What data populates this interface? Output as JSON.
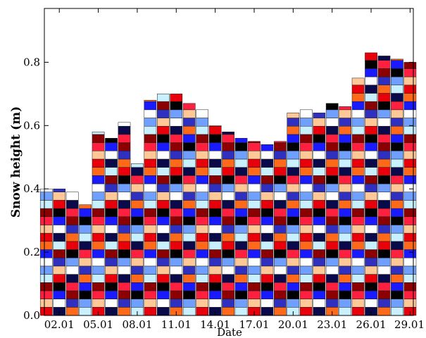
{
  "chart_data": {
    "type": "bar",
    "subtype": "stacked-layers",
    "xlabel": "Date",
    "ylabel": "Snow height (m)",
    "ylim": [
      0.0,
      0.97
    ],
    "y_ticks": [
      "0.0",
      "0.2",
      "0.4",
      "0.6",
      "0.8"
    ],
    "y_tick_values": [
      0.0,
      0.2,
      0.4,
      0.6,
      0.8
    ],
    "x_ticks": [
      "02.01",
      "05.01",
      "08.01",
      "11.01",
      "14.01",
      "17.01",
      "20.01",
      "23.01",
      "26.01",
      "29.01"
    ],
    "x_tick_days": [
      2,
      5,
      8,
      11,
      14,
      17,
      20,
      23,
      26,
      29
    ],
    "x_range": [
      0.85,
      29.25
    ],
    "grid": false,
    "legend": "none",
    "layer_colors": [
      "#e8000b",
      "#1a1aff",
      "#6fa0ff",
      "#0a0a4a",
      "#8b0000",
      "#ffc896",
      "#ff6a1a",
      "#000000",
      "#ffffff",
      "#c8f0ff",
      "#ff2040",
      "#3030c0"
    ],
    "layer_spacing_m": 0.026,
    "dates": [
      "01.01",
      "02.01",
      "03.01",
      "04.01",
      "05.01",
      "06.01",
      "07.01",
      "08.01",
      "09.01",
      "10.01",
      "11.01",
      "12.01",
      "13.01",
      "14.01",
      "15.01",
      "16.01",
      "17.01",
      "18.01",
      "19.01",
      "20.01",
      "21.01",
      "22.01",
      "23.01",
      "24.01",
      "25.01",
      "26.01",
      "27.01",
      "28.01",
      "29.01"
    ],
    "snow_height": [
      0.4,
      0.4,
      0.39,
      0.35,
      0.58,
      0.56,
      0.61,
      0.48,
      0.68,
      0.7,
      0.7,
      0.67,
      0.65,
      0.6,
      0.58,
      0.56,
      0.55,
      0.54,
      0.55,
      0.64,
      0.65,
      0.64,
      0.67,
      0.66,
      0.75,
      0.83,
      0.82,
      0.81,
      0.8
    ]
  }
}
